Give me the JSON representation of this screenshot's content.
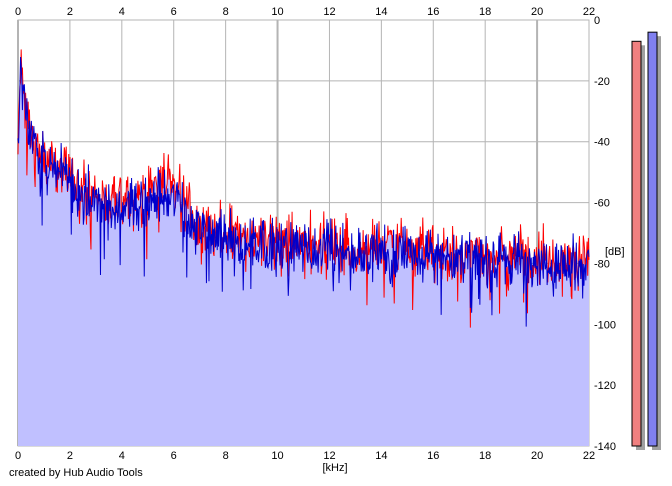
{
  "credit": "created by Hub Audio Tools",
  "colors": {
    "background": "#ffffff",
    "plot_background": "#ffffff",
    "grid": "#b4b4b4",
    "fill": "#c0c0ff",
    "left_channel": "#ff0000",
    "right_channel": "#0000cc",
    "meter_left": "#f08080",
    "meter_right": "#8080f0",
    "meter_shadow": "#a0a0a0"
  },
  "chart_data": {
    "type": "line",
    "title": "",
    "xlabel": "[kHz]",
    "ylabel": "[dB]",
    "xlim": [
      0,
      22
    ],
    "ylim": [
      -140,
      0
    ],
    "x_ticks": [
      "0",
      "2",
      "4",
      "6",
      "8",
      "10",
      "12",
      "14",
      "16",
      "18",
      "20",
      "22"
    ],
    "y_ticks": [
      "0",
      "-20",
      "-40",
      "-60",
      "-80",
      "-100",
      "-120",
      "-140"
    ],
    "grid": true,
    "envelope": {
      "x": [
        0,
        0.1,
        0.2,
        0.3,
        0.5,
        0.8,
        1,
        1.5,
        2,
        2.5,
        3,
        3.5,
        4,
        4.5,
        5,
        5.5,
        6,
        6.3,
        6.6,
        7,
        8,
        9,
        10,
        11,
        12,
        13,
        14,
        15,
        16,
        17,
        18,
        19,
        20,
        21,
        22
      ],
      "y": [
        -45,
        -14,
        -20,
        -30,
        -38,
        -42,
        -45,
        -48,
        -52,
        -56,
        -58,
        -60,
        -61,
        -59,
        -58,
        -57,
        -56,
        -59,
        -65,
        -69,
        -71,
        -72,
        -73,
        -73,
        -74,
        -75,
        -75,
        -75,
        -76,
        -77,
        -77,
        -77,
        -78,
        -79,
        -79
      ]
    },
    "series": [
      {
        "name": "",
        "color": "#ff0000"
      },
      {
        "name": "",
        "color": "#0000cc"
      }
    ],
    "meters": {
      "left_level_db": -7,
      "right_level_db": -4
    }
  }
}
